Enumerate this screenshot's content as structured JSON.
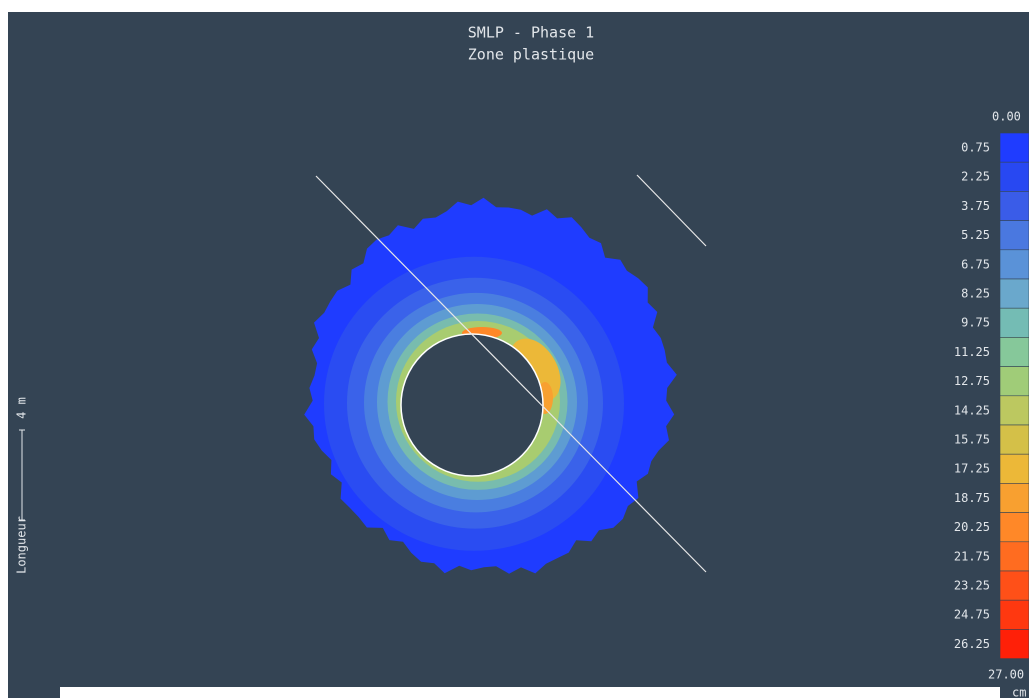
{
  "header": {
    "title": "SMLP - Phase 1",
    "subtitle": "Zone plastique"
  },
  "legend": {
    "top": "0.00",
    "bottom": "27.00",
    "unit": "cm",
    "items": [
      {
        "label": "0.75",
        "color": "#1f3cff"
      },
      {
        "label": "2.25",
        "color": "#2848f2"
      },
      {
        "label": "3.75",
        "color": "#3a5ce8"
      },
      {
        "label": "5.25",
        "color": "#4a78e0"
      },
      {
        "label": "6.75",
        "color": "#5a92d8"
      },
      {
        "label": "8.25",
        "color": "#6aa8cc"
      },
      {
        "label": "9.75",
        "color": "#74bcb4"
      },
      {
        "label": "11.25",
        "color": "#86c89a"
      },
      {
        "label": "12.75",
        "color": "#a0cc78"
      },
      {
        "label": "14.25",
        "color": "#bcc860"
      },
      {
        "label": "15.75",
        "color": "#d4c048"
      },
      {
        "label": "17.25",
        "color": "#ecb838"
      },
      {
        "label": "18.75",
        "color": "#f8a030"
      },
      {
        "label": "20.25",
        "color": "#ff8828"
      },
      {
        "label": "21.75",
        "color": "#ff6c20"
      },
      {
        "label": "23.25",
        "color": "#ff5018"
      },
      {
        "label": "24.75",
        "color": "#ff3810"
      },
      {
        "label": "26.25",
        "color": "#ff2008"
      }
    ]
  },
  "scale_bar": {
    "label": "Longueur",
    "length": "4 m"
  }
}
